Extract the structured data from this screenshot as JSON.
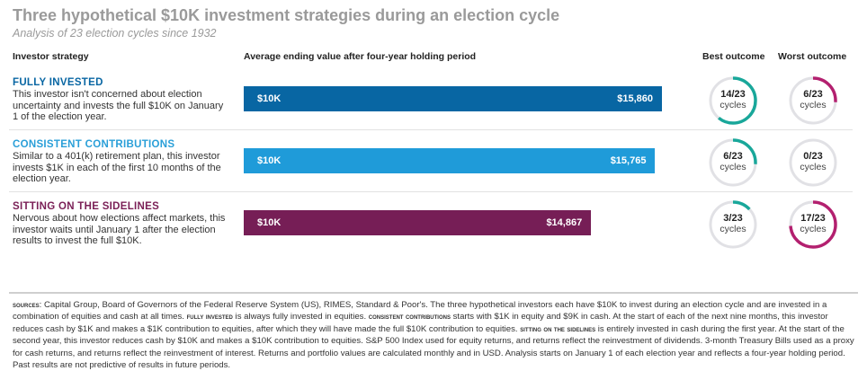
{
  "header": {
    "title": "Three hypothetical $10K investment strategies during an election cycle",
    "subtitle": "Analysis of 23 election cycles since 1932",
    "col_strategy": "Investor strategy",
    "col_value": "Average ending value after four-year holding period",
    "col_best": "Best outcome",
    "col_worst": "Worst outcome"
  },
  "colors": {
    "ring": "#e1e1e5",
    "best": "#19a79a",
    "worst": "#b3206f"
  },
  "chart_data": {
    "type": "bar",
    "orientation": "horizontal",
    "title": "Average ending value after four-year holding period",
    "axis_start": 10000,
    "axis_max": 15860,
    "start_label": "$10K",
    "categories": [
      "FULLY INVESTED",
      "CONSISTENT CONTRIBUTIONS",
      "SITTING ON THE SIDELINES"
    ],
    "values": [
      15860,
      15765,
      14867
    ],
    "value_labels": [
      "$15,860",
      "$15,765",
      "$14,867"
    ],
    "total_cycles": 23
  },
  "strategies": [
    {
      "name": "FULLY INVESTED",
      "color": "#0866a3",
      "bar_color": "#0866a3",
      "description": "This investor isn't concerned about election uncertainty and invests the full $10K on January 1 of the election year.",
      "best": 14,
      "worst": 6,
      "best_label": "14/23",
      "worst_label": "6/23",
      "cycles": "cycles"
    },
    {
      "name": "CONSISTENT CONTRIBUTIONS",
      "color": "#2a9fd8",
      "bar_color": "#1f9bd9",
      "description": "Similar to a 401(k) retirement plan, this investor invests $1K in each of the first 10 months of the election year.",
      "best": 6,
      "worst": 0,
      "best_label": "6/23",
      "worst_label": "0/23",
      "cycles": "cycles"
    },
    {
      "name": "SITTING ON THE SIDELINES",
      "color": "#7a1f56",
      "bar_color": "#761e56",
      "description": "Nervous about how elections affect markets, this investor waits until January 1 after the election results to invest the full $10K.",
      "best": 3,
      "worst": 17,
      "best_label": "3/23",
      "worst_label": "17/23",
      "cycles": "cycles"
    }
  ],
  "footer": {
    "p0": "sources",
    "p1": ": Capital Group, Board of Governors of the Federal Reserve System (US), RIMES, Standard & Poor's. The three hypothetical investors each have $10K to invest during an election cycle and are invested in a combination of equities and cash at all times. ",
    "p2": "fully invested",
    "p3": " is always fully invested in equities. ",
    "p4": "consistent contributions",
    "p5": " starts with $1K in equity and $9K in cash. At the start of each of the next nine months, this investor reduces cash by $1K and makes a $1K contribution to equities, after which they will have made the full $10K contribution to equities. ",
    "p6": "sitting on the sidelines",
    "p7": " is entirely invested in cash during the first year. At the start of the second year, this investor reduces cash by $10K and makes a $10K contribution to equities. S&P 500 Index used for equity returns, and returns reflect the reinvestment of dividends. 3-month Treasury Bills used as a proxy for cash returns, and returns reflect the reinvestment of interest. Returns and portfolio values are calculated monthly and in USD. Analysis starts on January 1 of each election year and reflects a four-year holding period. Past results are not predictive of results in future periods."
  }
}
